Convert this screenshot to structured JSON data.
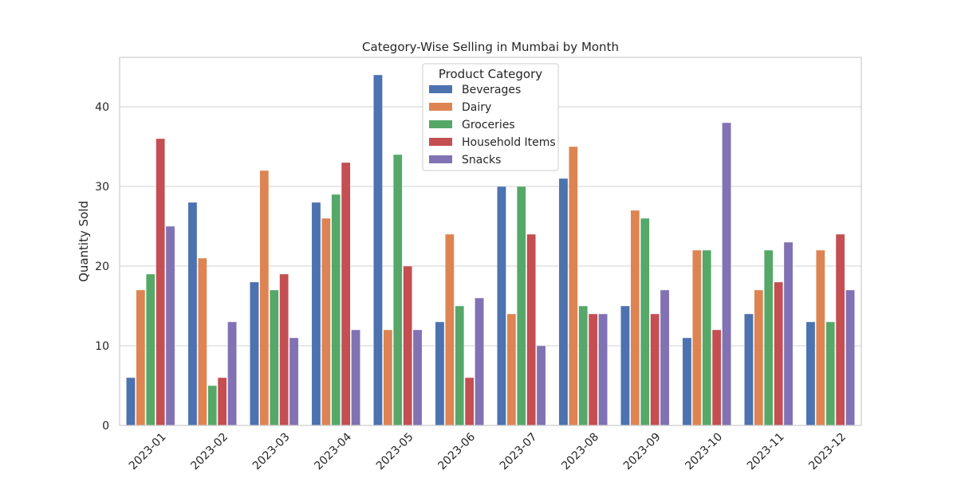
{
  "chart_data": {
    "type": "bar",
    "title": "Category-Wise Selling in Mumbai by Month",
    "xlabel": "",
    "ylabel": "Quantity Sold",
    "ylim": [
      0,
      46.2
    ],
    "yticks": [
      0,
      10,
      20,
      30,
      40
    ],
    "grid": true,
    "legend_title": "Product Category",
    "legend_position": "top-center",
    "categories": [
      "2023-01",
      "2023-02",
      "2023-03",
      "2023-04",
      "2023-05",
      "2023-06",
      "2023-07",
      "2023-08",
      "2023-09",
      "2023-10",
      "2023-11",
      "2023-12"
    ],
    "series": [
      {
        "name": "Beverages",
        "color": "#4c72b0",
        "values": [
          6,
          28,
          18,
          28,
          44,
          13,
          30,
          31,
          15,
          11,
          14,
          13
        ]
      },
      {
        "name": "Dairy",
        "color": "#dd8452",
        "values": [
          17,
          21,
          32,
          26,
          12,
          24,
          14,
          35,
          27,
          22,
          17,
          22
        ]
      },
      {
        "name": "Groceries",
        "color": "#55a868",
        "values": [
          19,
          5,
          17,
          29,
          34,
          15,
          30,
          15,
          26,
          22,
          22,
          13
        ]
      },
      {
        "name": "Household Items",
        "color": "#c44e52",
        "values": [
          36,
          6,
          19,
          33,
          20,
          6,
          24,
          14,
          14,
          12,
          18,
          24
        ]
      },
      {
        "name": "Snacks",
        "color": "#8172b3",
        "values": [
          25,
          13,
          11,
          12,
          12,
          16,
          10,
          14,
          17,
          38,
          23,
          17
        ]
      }
    ]
  }
}
